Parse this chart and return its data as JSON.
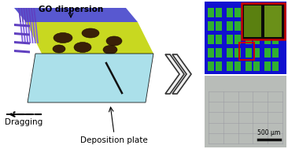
{
  "bg_color": "#ffffff",
  "plate_color": "#a0dce8",
  "plate_edge": "#000000",
  "substrate_top_color": "#c8d820",
  "substrate_side_color": "#5858d0",
  "electrode_color": "#6040c0",
  "blob_color": "#3a2008",
  "chevron_fill": "#f0f0f0",
  "chevron_edge": "#333333",
  "blue_bg": "#1010d0",
  "green_elec": "#30b030",
  "red_box": "#cc0000",
  "inset_bg": "#0a0a0a",
  "inset_green1": "#5a8010",
  "inset_green2": "#6a9018",
  "grey_bg": "#b8bcb8",
  "grey_line": "#9898a0",
  "scalebar_color": "#111111",
  "dragging_text": "Dragging",
  "deposition_text": "Deposition plate",
  "go_text": "GO dispersion",
  "scalebar_text": "500 μm",
  "label_fontsize": 7.5,
  "small_fontsize": 5.5
}
